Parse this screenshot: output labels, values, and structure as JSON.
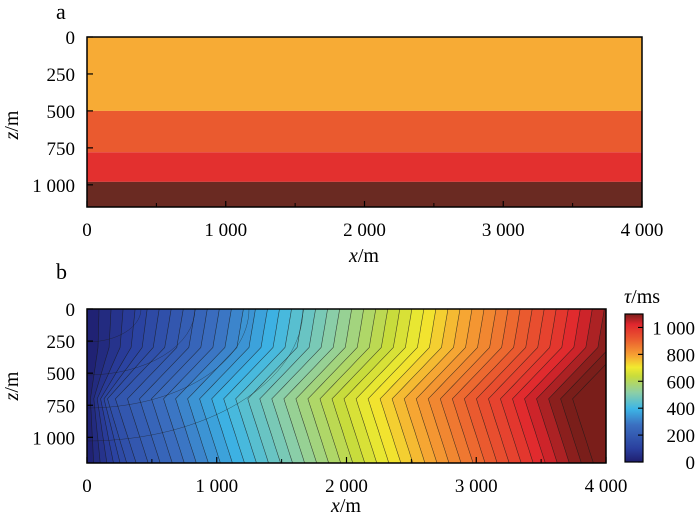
{
  "figure": {
    "panels": [
      "a",
      "b"
    ]
  },
  "chart_data": [
    {
      "panel": "a",
      "type": "heatmap",
      "description_kind": "layered velocity model",
      "xlabel": "x/m",
      "ylabel": "z/m",
      "xlim": [
        0,
        4000
      ],
      "ylim": [
        1150,
        0
      ],
      "xticks": [
        0,
        1000,
        2000,
        3000,
        4000
      ],
      "xticklabels": [
        "0",
        "1 000",
        "2 000",
        "3 000",
        "4 000"
      ],
      "yticks": [
        0,
        250,
        500,
        750,
        1000
      ],
      "yticklabels": [
        "0",
        "250",
        "500",
        "750",
        "1 000"
      ],
      "layers": [
        {
          "z_top": 0,
          "z_bottom": 500,
          "color": "#F7AB35"
        },
        {
          "z_top": 500,
          "z_bottom": 780,
          "color": "#EA5A2F"
        },
        {
          "z_top": 780,
          "z_bottom": 980,
          "color": "#E3302F"
        },
        {
          "z_top": 980,
          "z_bottom": 1150,
          "color": "#6A2A22"
        }
      ]
    },
    {
      "panel": "b",
      "type": "heatmap",
      "description_kind": "traveltime contour map",
      "xlabel": "x/m",
      "ylabel": "z/m",
      "xlim": [
        0,
        4000
      ],
      "ylim": [
        1200,
        0
      ],
      "xticks": [
        0,
        1000,
        2000,
        3000,
        4000
      ],
      "xticklabels": [
        "0",
        "1 000",
        "2 000",
        "3 000",
        "4 000"
      ],
      "yticks": [
        0,
        250,
        500,
        750,
        1000
      ],
      "yticklabels": [
        "0",
        "250",
        "500",
        "750",
        "1 000"
      ],
      "colorbar": {
        "label": "τ/ms",
        "range": [
          0,
          1100
        ],
        "ticks": [
          0,
          200,
          400,
          600,
          800,
          1000
        ],
        "ticklabels": [
          "0",
          "200",
          "400",
          "600",
          "800",
          "1 000"
        ],
        "colormap": "jet"
      },
      "contour_interval_ms": 25,
      "contour_knots": [
        {
          "z": 0,
          "shift_x": 0
        },
        {
          "z": 300,
          "shift_x": -50
        },
        {
          "z": 700,
          "shift_x": -430
        },
        {
          "z": 1200,
          "shift_x": -270
        }
      ],
      "tau_max_ms": 1100
    }
  ]
}
